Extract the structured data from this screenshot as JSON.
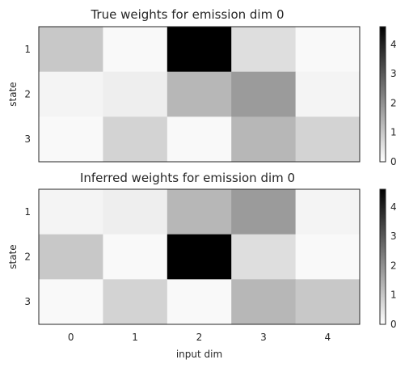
{
  "chart_data": [
    {
      "type": "heatmap",
      "title": "True weights for emission dim 0",
      "ylabel": "state",
      "xlabel": "",
      "row_labels": [
        "1",
        "2",
        "3"
      ],
      "col_labels": [
        "0",
        "1",
        "2",
        "3",
        "4"
      ],
      "values": [
        [
          1.0,
          0.1,
          4.6,
          0.6,
          0.1
        ],
        [
          0.2,
          0.3,
          1.3,
          1.8,
          0.2
        ],
        [
          0.1,
          0.8,
          0.1,
          1.3,
          0.8
        ]
      ],
      "colormap": "white-to-black",
      "colorbar": {
        "range": [
          0,
          4.6
        ],
        "ticks": [
          "0",
          "1",
          "2",
          "3",
          "4"
        ]
      }
    },
    {
      "type": "heatmap",
      "title": "Inferred weights for emission dim 0",
      "ylabel": "state",
      "xlabel": "input dim",
      "row_labels": [
        "1",
        "2",
        "3"
      ],
      "col_labels": [
        "0",
        "1",
        "2",
        "3",
        "4"
      ],
      "values": [
        [
          0.2,
          0.3,
          1.3,
          1.8,
          0.2
        ],
        [
          1.0,
          0.1,
          4.6,
          0.6,
          0.1
        ],
        [
          0.1,
          0.8,
          0.1,
          1.3,
          1.0
        ]
      ],
      "colormap": "white-to-black",
      "colorbar": {
        "range": [
          0,
          4.6
        ],
        "ticks": [
          "0",
          "1",
          "2",
          "3",
          "4"
        ]
      }
    }
  ]
}
